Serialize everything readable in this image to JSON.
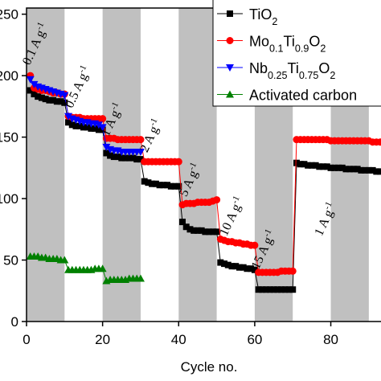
{
  "chart_data": {
    "type": "line",
    "x_label": "Cycle no.",
    "xlim": [
      0,
      93.2
    ],
    "ylim": [
      0,
      255
    ],
    "xticks": [
      0,
      20,
      40,
      60,
      80
    ],
    "yticks": [
      0,
      50,
      100,
      150,
      200,
      250
    ],
    "shaded_ranges": [
      [
        0,
        10
      ],
      [
        20,
        30
      ],
      [
        40,
        50
      ],
      [
        60,
        70
      ],
      [
        80,
        90
      ]
    ],
    "shade_color": "#c0c0c0",
    "legend": "upper right",
    "series": [
      {
        "name": "TiO2",
        "color": "#000000",
        "marker": "square",
        "x": [
          1,
          2,
          3,
          4,
          5,
          6,
          7,
          8,
          9,
          10,
          11,
          12,
          13,
          14,
          15,
          16,
          17,
          18,
          19,
          20,
          21,
          22,
          23,
          24,
          25,
          26,
          27,
          28,
          29,
          30,
          31,
          32,
          33,
          34,
          35,
          36,
          37,
          38,
          39,
          40,
          41,
          42,
          43,
          44,
          45,
          46,
          47,
          48,
          49,
          50,
          51,
          52,
          53,
          54,
          55,
          56,
          57,
          58,
          59,
          60,
          61,
          62,
          63,
          64,
          65,
          66,
          67,
          68,
          69,
          70,
          71,
          72,
          73,
          74,
          75,
          76,
          77,
          78,
          79,
          80,
          81,
          82,
          83,
          84,
          85,
          86,
          87,
          88,
          89,
          90,
          91,
          92,
          93
        ],
        "values": [
          188,
          185,
          183,
          182,
          181,
          180,
          180,
          179,
          179,
          178,
          162,
          160,
          159,
          159,
          158,
          158,
          157,
          157,
          156,
          156,
          137,
          135,
          134,
          134,
          133,
          133,
          133,
          133,
          132,
          132,
          114,
          113,
          112,
          112,
          111,
          111,
          111,
          110,
          110,
          110,
          81,
          77,
          75,
          74,
          74,
          74,
          73,
          73,
          73,
          73,
          48,
          47,
          46,
          45,
          45,
          44,
          44,
          43,
          43,
          42,
          26,
          26,
          26,
          26,
          26,
          26,
          26,
          26,
          26,
          26,
          129,
          128,
          128,
          127,
          127,
          127,
          126,
          126,
          126,
          125,
          125,
          125,
          125,
          124,
          124,
          124,
          124,
          123,
          123,
          123,
          123,
          122,
          122
        ]
      },
      {
        "name": "Mo0.1Ti0.9O2",
        "color": "#ff0000",
        "marker": "circle",
        "x": [
          1,
          2,
          3,
          4,
          5,
          6,
          7,
          8,
          9,
          10,
          11,
          12,
          13,
          14,
          15,
          16,
          17,
          18,
          19,
          20,
          21,
          22,
          23,
          24,
          25,
          26,
          27,
          28,
          29,
          30,
          31,
          32,
          33,
          34,
          35,
          36,
          37,
          38,
          39,
          40,
          41,
          42,
          43,
          44,
          45,
          46,
          47,
          48,
          49,
          50,
          51,
          52,
          53,
          54,
          55,
          56,
          57,
          58,
          59,
          60,
          61,
          62,
          63,
          64,
          65,
          66,
          67,
          68,
          69,
          70,
          71,
          72,
          73,
          74,
          75,
          76,
          77,
          78,
          79,
          80,
          81,
          82,
          83,
          84,
          85,
          86,
          87,
          88,
          89,
          90,
          91,
          92,
          93
        ],
        "values": [
          200,
          190,
          189,
          188,
          188,
          187,
          186,
          186,
          185,
          185,
          167,
          166,
          166,
          166,
          165,
          165,
          165,
          165,
          165,
          165,
          149,
          149,
          149,
          148,
          148,
          148,
          148,
          148,
          148,
          148,
          130,
          130,
          130,
          130,
          130,
          130,
          130,
          130,
          130,
          130,
          95,
          96,
          96,
          96,
          97,
          97,
          97,
          97,
          98,
          99,
          67,
          66,
          65,
          65,
          64,
          64,
          63,
          63,
          62,
          62,
          40,
          40,
          40,
          40,
          40,
          40,
          41,
          41,
          41,
          41,
          148,
          148,
          148,
          148,
          148,
          148,
          148,
          148,
          148,
          147,
          147,
          147,
          147,
          147,
          147,
          147,
          147,
          147,
          147,
          147,
          146,
          146,
          146
        ]
      },
      {
        "name": "Nb0.25Ti0.75O2",
        "color": "#0000ff",
        "marker": "triangle-down",
        "x": [
          1,
          2,
          3,
          4,
          5,
          6,
          7,
          8,
          9,
          10,
          11,
          12,
          13,
          14,
          15,
          16,
          17,
          18,
          19,
          20,
          21,
          22,
          23,
          24,
          25,
          26,
          27,
          28,
          29,
          30
        ],
        "values": [
          197,
          193,
          191,
          190,
          189,
          188,
          187,
          186,
          185,
          184,
          167,
          165,
          164,
          163,
          162,
          162,
          161,
          161,
          160,
          158,
          142,
          140,
          139,
          139,
          138,
          138,
          138,
          138,
          138,
          138
        ]
      },
      {
        "name": "Activated carbon",
        "color": "#008000",
        "marker": "triangle-up",
        "x": [
          1,
          2,
          3,
          4,
          5,
          6,
          7,
          8,
          9,
          10,
          11,
          12,
          13,
          14,
          15,
          16,
          17,
          18,
          19,
          20,
          21,
          22,
          23,
          24,
          25,
          26,
          27,
          28,
          29,
          30
        ],
        "values": [
          53,
          53,
          53,
          52,
          52,
          51,
          51,
          51,
          50,
          50,
          42,
          42,
          42,
          42,
          42,
          42,
          42,
          43,
          43,
          43,
          33,
          34,
          34,
          34,
          34,
          34,
          35,
          35,
          35,
          35
        ]
      }
    ],
    "annotations": [
      {
        "text": "0.1 A g-1",
        "x": 0.8,
        "y": 208
      },
      {
        "text": "0.5 A g-1",
        "x": 12,
        "y": 173
      },
      {
        "text": "1 A g-1",
        "x": 21.5,
        "y": 150
      },
      {
        "text": "2 A g-1",
        "x": 31.7,
        "y": 137
      },
      {
        "text": "5 A g-1",
        "x": 42,
        "y": 101
      },
      {
        "text": "10 A g-1",
        "x": 52.6,
        "y": 69
      },
      {
        "text": "15 A g-1",
        "x": 61,
        "y": 42
      },
      {
        "text": "1 A g-1",
        "x": 77.6,
        "y": 69
      }
    ]
  }
}
